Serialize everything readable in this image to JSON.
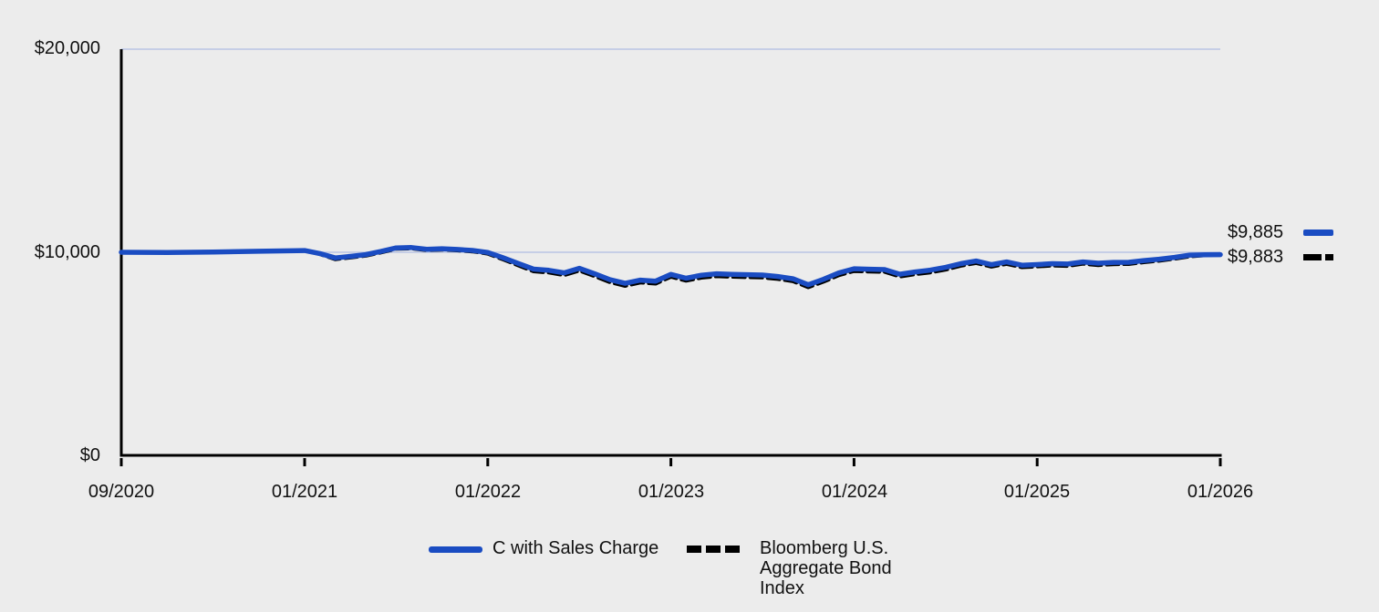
{
  "colors": {
    "background": "#ececec",
    "gridline": "#c6cee6",
    "axis": "#000000",
    "text": "#111111"
  },
  "chart_data": {
    "type": "line",
    "title": "",
    "xlabel": "",
    "ylabel": "",
    "ylim": [
      0,
      20000
    ],
    "grid_values": [
      10000,
      20000
    ],
    "grid_on": true,
    "legend_position": "bottom",
    "y_tick_labels": [
      "$0",
      "$10,000",
      "$20,000"
    ],
    "x_tick_labels": [
      "09/2020",
      "01/2021",
      "01/2022",
      "01/2023",
      "01/2024",
      "01/2025",
      "01/2026"
    ],
    "x_tick_month_indexes": [
      0,
      4,
      16,
      28,
      40,
      52,
      64
    ],
    "months": [
      "09/2020",
      "10/2020",
      "11/2020",
      "12/2020",
      "01/2021",
      "02/2021",
      "03/2021",
      "04/2021",
      "05/2021",
      "06/2021",
      "07/2021",
      "08/2021",
      "09/2021",
      "10/2021",
      "11/2021",
      "12/2021",
      "01/2022",
      "02/2022",
      "03/2022",
      "04/2022",
      "05/2022",
      "06/2022",
      "07/2022",
      "08/2022",
      "09/2022",
      "10/2022",
      "11/2022",
      "12/2022",
      "01/2023",
      "02/2023",
      "03/2023",
      "04/2023",
      "05/2023",
      "06/2023",
      "07/2023",
      "08/2023",
      "09/2023",
      "10/2023",
      "11/2023",
      "12/2023",
      "01/2024",
      "02/2024",
      "03/2024",
      "04/2024",
      "05/2024",
      "06/2024",
      "07/2024",
      "08/2024",
      "09/2024",
      "10/2024",
      "11/2024",
      "12/2024",
      "01/2025",
      "02/2025",
      "03/2025",
      "04/2025",
      "05/2025",
      "06/2025",
      "07/2025",
      "08/2025",
      "09/2025",
      "10/2025",
      "11/2025",
      "12/2025",
      "01/2026"
    ],
    "series": [
      {
        "name": "C with Sales Charge",
        "style": "solid",
        "color": "#1a4cc2",
        "end_label": "$9,885",
        "values": [
          10000,
          9985,
          10015,
          10050,
          10085,
          9935,
          9720,
          9800,
          9885,
          10040,
          10215,
          10235,
          10150,
          10175,
          10140,
          10090,
          9990,
          9730,
          9450,
          9170,
          9110,
          8985,
          9210,
          8940,
          8650,
          8470,
          8630,
          8580,
          8910,
          8720,
          8870,
          8940,
          8915,
          8895,
          8880,
          8805,
          8695,
          8400,
          8670,
          8985,
          9190,
          9165,
          9150,
          8920,
          9030,
          9120,
          9255,
          9440,
          9570,
          9390,
          9525,
          9365,
          9395,
          9440,
          9420,
          9525,
          9460,
          9500,
          9505,
          9590,
          9660,
          9750,
          9860,
          9880,
          9885
        ]
      },
      {
        "name": "Bloomberg U.S. Aggregate Bond Index",
        "style": "dashed",
        "color": "#000000",
        "end_label": "$9,883",
        "values": [
          10000,
          9980,
          10010,
          10045,
          10075,
          9905,
          9655,
          9735,
          9825,
          9985,
          10165,
          10185,
          10100,
          10125,
          10090,
          10035,
          9930,
          9645,
          9350,
          9060,
          9000,
          8870,
          9095,
          8820,
          8525,
          8340,
          8505,
          8455,
          8790,
          8595,
          8745,
          8815,
          8790,
          8770,
          8755,
          8680,
          8570,
          8275,
          8545,
          8865,
          9070,
          9045,
          9030,
          8800,
          8915,
          9005,
          9140,
          9330,
          9465,
          9285,
          9420,
          9260,
          9295,
          9340,
          9325,
          9430,
          9365,
          9410,
          9415,
          9505,
          9580,
          9675,
          9795,
          9850,
          9883
        ]
      }
    ]
  }
}
